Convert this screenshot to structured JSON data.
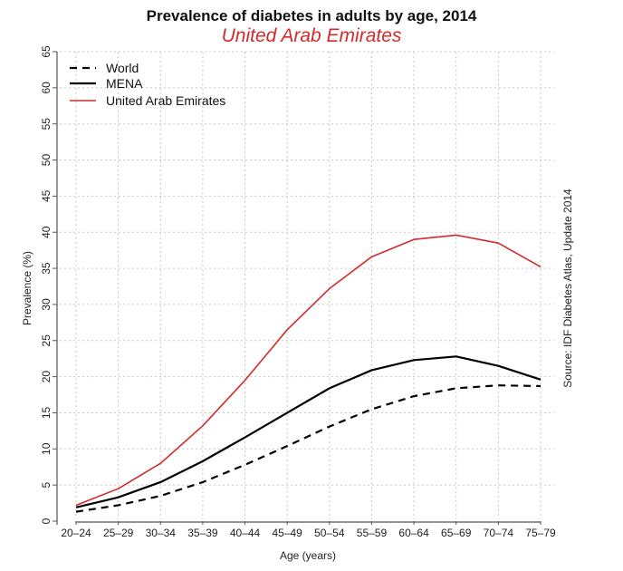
{
  "chart_data": {
    "type": "line",
    "title": "Prevalence of diabetes in adults by age, 2014",
    "subtitle": "United Arab Emirates",
    "xlabel": "Age (years)",
    "ylabel": "Prevalence (%)",
    "source": "Source: IDF Diabetes Atlas, Update 2014",
    "categories": [
      "20–24",
      "25–29",
      "30–34",
      "35–39",
      "40–44",
      "45–49",
      "50–54",
      "55–59",
      "60–64",
      "65–69",
      "70–74",
      "75–79"
    ],
    "ylim": [
      0,
      65
    ],
    "yticks": [
      0,
      5,
      10,
      15,
      20,
      25,
      30,
      35,
      40,
      45,
      50,
      55,
      60,
      65
    ],
    "grid": true,
    "legend_position": "top-left",
    "series": [
      {
        "name": "World",
        "style": "dashed",
        "color": "#000000",
        "values": [
          1.3,
          2.2,
          3.5,
          5.4,
          7.8,
          10.4,
          13.1,
          15.5,
          17.3,
          18.4,
          18.8,
          18.7
        ]
      },
      {
        "name": "MENA",
        "style": "solid",
        "color": "#000000",
        "values": [
          1.9,
          3.3,
          5.4,
          8.3,
          11.6,
          15.0,
          18.4,
          20.9,
          22.3,
          22.8,
          21.5,
          19.6
        ]
      },
      {
        "name": "United Arab Emirates",
        "style": "solid",
        "color": "#d42a2a",
        "values": [
          2.2,
          4.5,
          8.0,
          13.2,
          19.5,
          26.5,
          32.2,
          36.6,
          39.0,
          39.6,
          38.5,
          35.2
        ]
      }
    ]
  }
}
